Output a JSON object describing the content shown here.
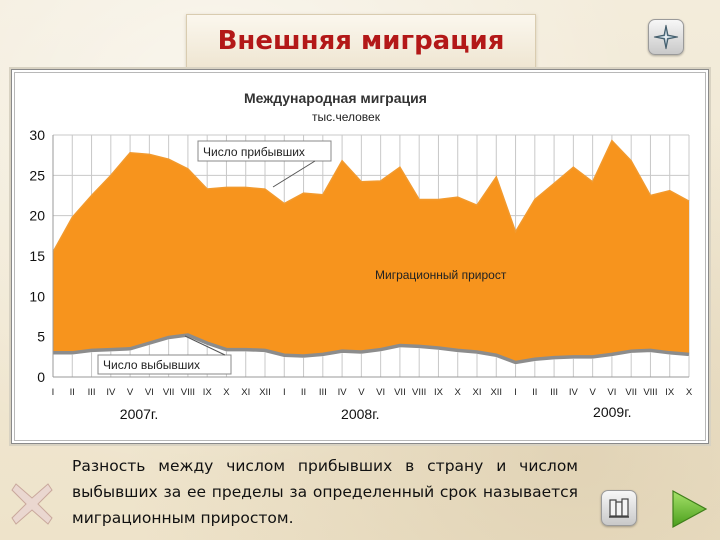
{
  "slide": {
    "title": "Внешняя миграция",
    "caption": "Разность между числом прибывших в страну и числом выбывших за ее пределы за определенный срок называется миграционным приростом."
  },
  "icons": {
    "top_right": "compass-icon",
    "bottom_left": "cross-icon",
    "bottom_center": "book-icon",
    "bottom_right": "play-forward-icon"
  },
  "colors": {
    "title": "#b31818",
    "area_fill": "#f7941d",
    "arrivals_line": "#f29a2e",
    "departures_line": "#8c8c8c",
    "grid": "#c8c8c8",
    "plot_bg": "#ffffff"
  },
  "chart_data": {
    "type": "area",
    "title": "Международная миграция",
    "subtitle": "тыс.человек",
    "ylim": [
      0,
      30
    ],
    "yticks": [
      "0",
      "5",
      "10",
      "15",
      "20",
      "25",
      "30"
    ],
    "grid": true,
    "categories": [
      "I",
      "II",
      "III",
      "IV",
      "V",
      "VI",
      "VII",
      "VIII",
      "IX",
      "X",
      "XI",
      "XII",
      "I",
      "II",
      "III",
      "IV",
      "V",
      "VI",
      "VII",
      "VIII",
      "IX",
      "X",
      "XI",
      "XII",
      "I",
      "II",
      "III",
      "IV",
      "V",
      "VI",
      "VII",
      "VIII",
      "IX",
      "X"
    ],
    "year_labels": [
      {
        "label": "2007г.",
        "start_index": 0
      },
      {
        "label": "2008г.",
        "start_index": 12
      },
      {
        "label": "2009г.",
        "start_index": 24
      }
    ],
    "series": [
      {
        "name": "Число прибывших",
        "values": [
          15.5,
          19.8,
          22.5,
          25,
          27.8,
          27.6,
          27,
          25.8,
          23.3,
          23.5,
          23.5,
          23.3,
          21.5,
          22.8,
          22.6,
          26.8,
          24.2,
          24.3,
          26,
          22,
          22,
          22.3,
          21.3,
          24.8,
          18,
          22,
          24,
          26,
          24.2,
          29.3,
          26.8,
          22.5,
          23.1,
          21.8
        ]
      },
      {
        "name": "Число выбывших",
        "values": [
          3,
          3,
          3.3,
          3.4,
          3.5,
          4.2,
          4.9,
          5.2,
          4.2,
          3.4,
          3.4,
          3.3,
          2.7,
          2.6,
          2.8,
          3.2,
          3.1,
          3.4,
          3.9,
          3.8,
          3.6,
          3.3,
          3.1,
          2.7,
          1.8,
          2.2,
          2.4,
          2.5,
          2.5,
          2.8,
          3.2,
          3.3,
          3,
          2.8
        ]
      }
    ],
    "annotations": {
      "arrivals": "Число прибывших",
      "departures": "Число выбывших",
      "increase": "Миграционный прирост"
    }
  }
}
